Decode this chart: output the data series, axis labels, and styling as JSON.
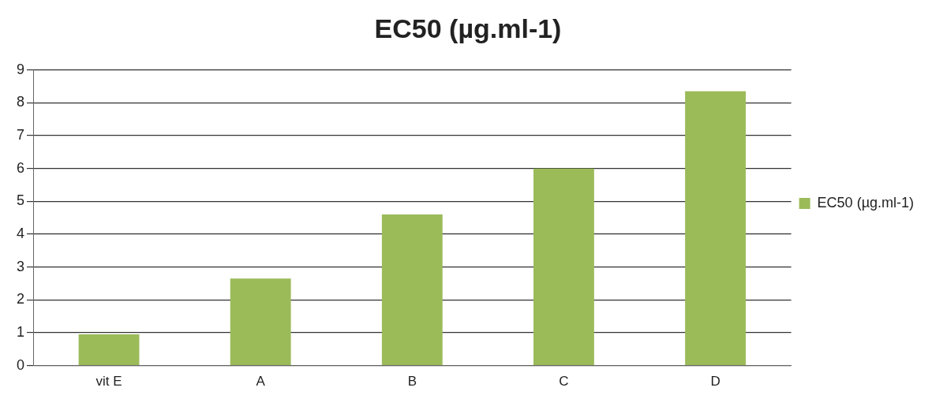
{
  "chart_data": {
    "type": "bar",
    "title": "EC50 (µg.ml-1)",
    "categories": [
      "vit E",
      "A",
      "B",
      "C",
      "D"
    ],
    "series": [
      {
        "name": "EC50 (µg.ml-1)",
        "color": "#9bbb59",
        "values": [
          0.95,
          2.65,
          4.6,
          6.0,
          8.35
        ]
      }
    ],
    "ylim": [
      0,
      9
    ],
    "yticks": [
      0,
      1,
      2,
      3,
      4,
      5,
      6,
      7,
      8,
      9
    ],
    "grid": "y",
    "legend": "right"
  }
}
